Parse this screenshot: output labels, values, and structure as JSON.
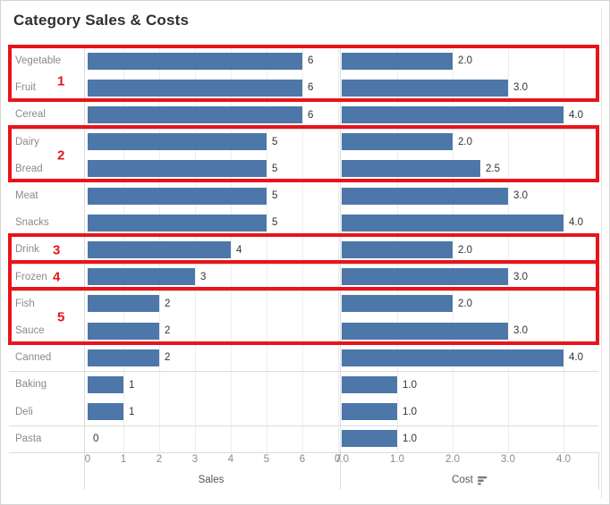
{
  "chart_data": {
    "type": "bar",
    "orientation": "horizontal",
    "title": "Category Sales & Costs",
    "categories": [
      "Vegetable",
      "Fruit",
      "Cereal",
      "Dairy",
      "Bread",
      "Meat",
      "Snacks",
      "Drink",
      "Frozen",
      "Fish",
      "Sauce",
      "Canned",
      "Baking",
      "Deli",
      "Pasta"
    ],
    "series": [
      {
        "name": "Sales",
        "values": [
          6,
          6,
          6,
          5,
          5,
          5,
          5,
          4,
          3,
          2,
          2,
          2,
          1,
          1,
          0
        ],
        "value_labels": [
          "6",
          "6",
          "6",
          "5",
          "5",
          "5",
          "5",
          "4",
          "3",
          "2",
          "2",
          "2",
          "1",
          "1",
          "0"
        ],
        "axis": {
          "label": "Sales",
          "ticks": [
            "0",
            "1",
            "2",
            "3",
            "4",
            "5",
            "6",
            "7"
          ],
          "tick_values": [
            0,
            1,
            2,
            3,
            4,
            5,
            6,
            7
          ],
          "range": [
            0,
            7
          ]
        }
      },
      {
        "name": "Cost",
        "values": [
          2.0,
          3.0,
          4.0,
          2.0,
          2.5,
          3.0,
          4.0,
          2.0,
          3.0,
          2.0,
          3.0,
          4.0,
          1.0,
          1.0,
          1.0
        ],
        "value_labels": [
          "2.0",
          "3.0",
          "4.0",
          "2.0",
          "2.5",
          "3.0",
          "4.0",
          "2.0",
          "3.0",
          "2.0",
          "3.0",
          "4.0",
          "1.0",
          "1.0",
          "1.0"
        ],
        "axis": {
          "label": "Cost",
          "ticks": [
            "0.0",
            "1.0",
            "2.0",
            "3.0",
            "4.0"
          ],
          "tick_values": [
            0,
            1,
            2,
            3,
            4
          ],
          "range": [
            0,
            4
          ]
        }
      }
    ],
    "legend_position": "none",
    "grid": true,
    "sort": "sales-descending"
  },
  "annotations": {
    "boxes": [
      {
        "label": "1",
        "rows": [
          "Vegetable",
          "Fruit"
        ],
        "start_row": 0,
        "row_count": 2
      },
      {
        "label": "2",
        "rows": [
          "Dairy",
          "Bread"
        ],
        "start_row": 3,
        "row_count": 2
      },
      {
        "label": "3",
        "rows": [
          "Drink"
        ],
        "start_row": 7,
        "row_count": 1
      },
      {
        "label": "4",
        "rows": [
          "Frozen"
        ],
        "start_row": 8,
        "row_count": 1
      },
      {
        "label": "5",
        "rows": [
          "Fish",
          "Sauce"
        ],
        "start_row": 9,
        "row_count": 2
      }
    ]
  },
  "icons": {
    "cost_sort_icon": "sort-descending-icon"
  },
  "colors": {
    "bar": "#4d77a8",
    "annotation_red": "#e8141a",
    "title_text": "#2f2f2f",
    "category_text": "#8a8a8a",
    "value_text": "#333333",
    "tick_text": "#8b8b8b",
    "gridline": "#ededed",
    "divider": "#dcdcdc"
  }
}
